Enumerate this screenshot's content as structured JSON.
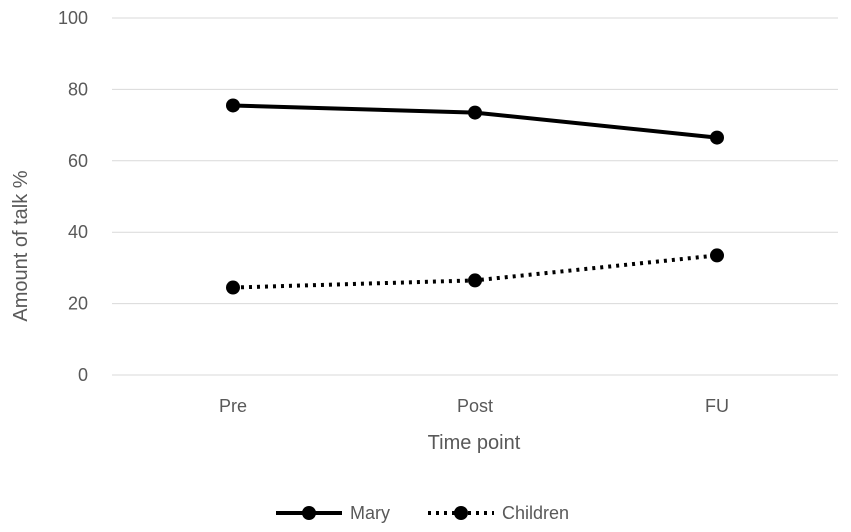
{
  "chart_data": {
    "type": "line",
    "title": "",
    "xlabel": "Time point",
    "ylabel": "Amount of talk %",
    "categories": [
      "Pre",
      "Post",
      "FU"
    ],
    "ylim": [
      0,
      100
    ],
    "yticks": [
      0,
      20,
      40,
      60,
      80,
      100
    ],
    "grid": true,
    "legend_position": "bottom",
    "series": [
      {
        "name": "Mary",
        "values": [
          75.5,
          73.5,
          66.5
        ],
        "color": "#000000",
        "line_style": "solid"
      },
      {
        "name": "Children",
        "values": [
          24.5,
          26.5,
          33.5
        ],
        "color": "#000000",
        "line_style": "dotted"
      }
    ]
  }
}
